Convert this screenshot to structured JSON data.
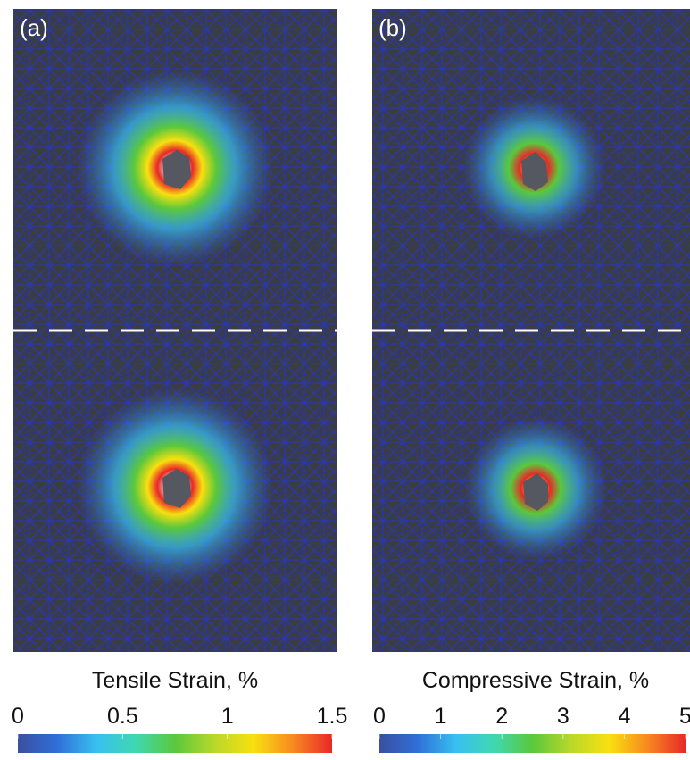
{
  "chart_data": [
    {
      "type": "colorbar",
      "panel_label": "(a)",
      "title": "Tensile Strain, %",
      "xlim": [
        0,
        1.5
      ],
      "xticks": [
        0,
        0.5,
        1,
        1.5
      ],
      "colors": [
        "#3a4fa0",
        "#2f6fd8",
        "#38c0f0",
        "#3fd8b0",
        "#5ac83c",
        "#b8d82a",
        "#f8e010",
        "#f88a20",
        "#e82828"
      ]
    },
    {
      "type": "colorbar",
      "panel_label": "(b)",
      "title": "Compressive Strain, %",
      "xlim": [
        0,
        5
      ],
      "xticks": [
        0,
        1,
        2,
        3,
        4,
        5
      ],
      "colors": [
        "#3a4fa0",
        "#2f6fd8",
        "#38c0f0",
        "#3fd8b0",
        "#5ac83c",
        "#b8d82a",
        "#f8e010",
        "#f88a20",
        "#e82828"
      ]
    }
  ]
}
